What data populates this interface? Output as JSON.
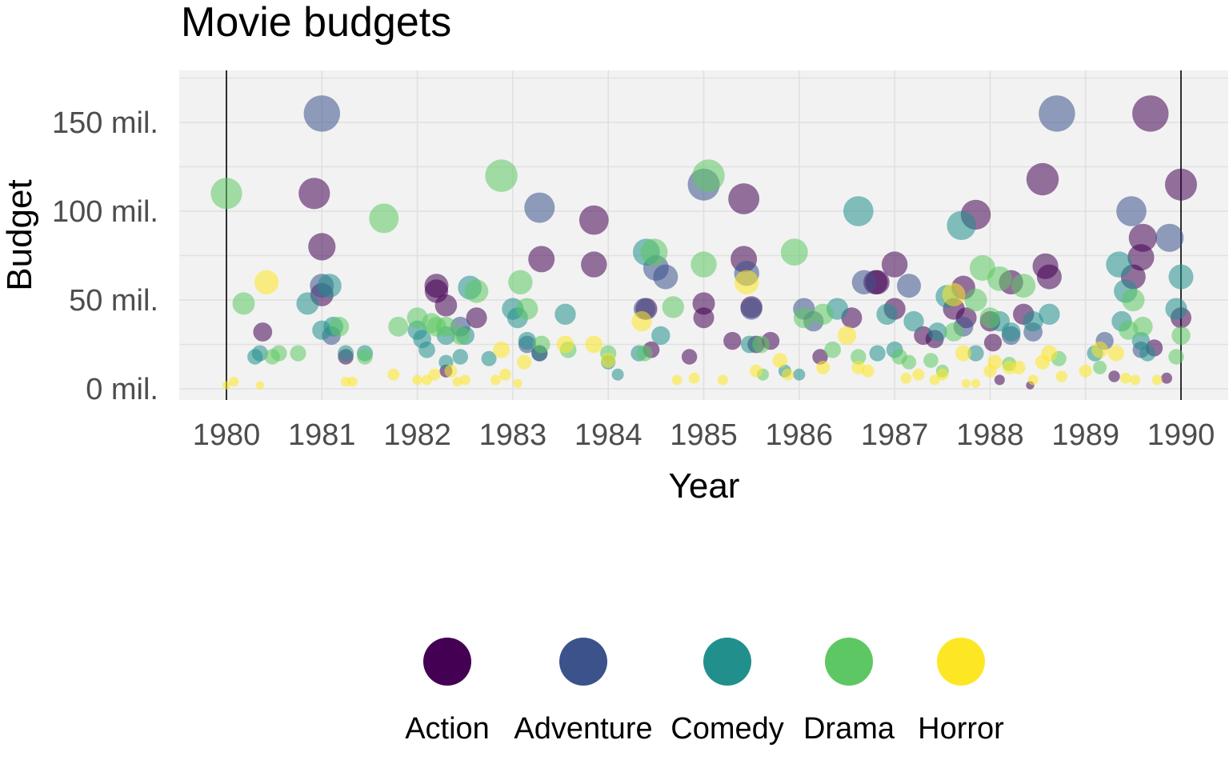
{
  "chart_data": {
    "type": "scatter",
    "title": "Movie budgets",
    "xlabel": "Year",
    "ylabel": "Budget",
    "xlim": [
      1979.5,
      1990.25
    ],
    "ylim": [
      -8,
      180
    ],
    "x_ticks": [
      1980,
      1981,
      1982,
      1983,
      1984,
      1985,
      1986,
      1987,
      1988,
      1989,
      1990
    ],
    "x_tick_labels": [
      "1980",
      "1981",
      "1982",
      "1983",
      "1984",
      "1985",
      "1986",
      "1987",
      "1988",
      "1989",
      "1990"
    ],
    "y_ticks": [
      0,
      50,
      100,
      150
    ],
    "y_tick_labels": [
      "0 mil.",
      "50 mil.",
      "100 mil.",
      "150 mil."
    ],
    "y_gridlines": [
      0,
      25,
      50,
      75,
      100,
      125,
      150,
      175
    ],
    "vertical_markers": [
      1980,
      1990
    ],
    "grid": true,
    "legend_position": "bottom",
    "size_encodes": "budget",
    "series": [
      {
        "name": "Action",
        "color": "#440154",
        "points": [
          [
            1980.38,
            32
          ],
          [
            1980.92,
            110
          ],
          [
            1981.0,
            80
          ],
          [
            1981.0,
            53
          ],
          [
            1981.25,
            18
          ],
          [
            1982.2,
            55
          ],
          [
            1982.2,
            58
          ],
          [
            1982.3,
            47
          ],
          [
            1982.3,
            10
          ],
          [
            1982.62,
            40
          ],
          [
            1983.28,
            20
          ],
          [
            1983.3,
            73
          ],
          [
            1983.85,
            95
          ],
          [
            1983.85,
            70
          ],
          [
            1984.4,
            45
          ],
          [
            1984.45,
            22
          ],
          [
            1984.85,
            18
          ],
          [
            1985.0,
            40
          ],
          [
            1985.0,
            48
          ],
          [
            1985.3,
            27
          ],
          [
            1985.42,
            73
          ],
          [
            1985.42,
            107
          ],
          [
            1985.5,
            46
          ],
          [
            1985.55,
            25
          ],
          [
            1985.7,
            27
          ],
          [
            1986.22,
            18
          ],
          [
            1986.55,
            40
          ],
          [
            1986.8,
            60
          ],
          [
            1986.82,
            60
          ],
          [
            1987.0,
            45
          ],
          [
            1987.0,
            70
          ],
          [
            1987.3,
            30
          ],
          [
            1987.42,
            28
          ],
          [
            1987.62,
            45
          ],
          [
            1987.72,
            57
          ],
          [
            1987.75,
            40
          ],
          [
            1987.85,
            98
          ],
          [
            1988.0,
            38
          ],
          [
            1988.03,
            26
          ],
          [
            1988.1,
            5
          ],
          [
            1988.22,
            60
          ],
          [
            1988.35,
            42
          ],
          [
            1988.42,
            2
          ],
          [
            1988.55,
            118
          ],
          [
            1988.58,
            69
          ],
          [
            1988.62,
            63
          ],
          [
            1989.3,
            7
          ],
          [
            1989.5,
            63
          ],
          [
            1989.58,
            74
          ],
          [
            1989.6,
            85
          ],
          [
            1989.68,
            155
          ],
          [
            1989.72,
            23
          ],
          [
            1990.0,
            40
          ],
          [
            1990.0,
            115
          ],
          [
            1989.85,
            6
          ]
        ]
      },
      {
        "name": "Adventure",
        "color": "#3b528b",
        "points": [
          [
            1981.0,
            155
          ],
          [
            1981.0,
            58
          ],
          [
            1981.1,
            30
          ],
          [
            1982.45,
            35
          ],
          [
            1983.15,
            25
          ],
          [
            1983.28,
            102
          ],
          [
            1984.38,
            45
          ],
          [
            1984.5,
            68
          ],
          [
            1984.6,
            63
          ],
          [
            1985.0,
            115
          ],
          [
            1985.45,
            65
          ],
          [
            1985.5,
            45
          ],
          [
            1986.05,
            45
          ],
          [
            1986.15,
            38
          ],
          [
            1986.68,
            60
          ],
          [
            1987.15,
            58
          ],
          [
            1987.72,
            35
          ],
          [
            1988.22,
            30
          ],
          [
            1988.45,
            32
          ],
          [
            1988.7,
            155
          ],
          [
            1989.2,
            27
          ],
          [
            1989.48,
            100
          ],
          [
            1989.58,
            22
          ],
          [
            1989.88,
            85
          ]
        ]
      },
      {
        "name": "Comedy",
        "color": "#21908c",
        "points": [
          [
            1980.3,
            18
          ],
          [
            1980.35,
            20
          ],
          [
            1980.85,
            48
          ],
          [
            1981.0,
            33
          ],
          [
            1981.08,
            58
          ],
          [
            1981.12,
            35
          ],
          [
            1981.25,
            20
          ],
          [
            1981.45,
            20
          ],
          [
            1982.0,
            33
          ],
          [
            1982.05,
            28
          ],
          [
            1982.1,
            22
          ],
          [
            1982.3,
            15
          ],
          [
            1982.3,
            30
          ],
          [
            1982.45,
            18
          ],
          [
            1982.5,
            30
          ],
          [
            1982.55,
            57
          ],
          [
            1982.75,
            17
          ],
          [
            1983.0,
            45
          ],
          [
            1983.05,
            40
          ],
          [
            1983.15,
            27
          ],
          [
            1983.28,
            20
          ],
          [
            1983.55,
            42
          ],
          [
            1984.0,
            15
          ],
          [
            1984.1,
            8
          ],
          [
            1984.32,
            20
          ],
          [
            1984.4,
            77
          ],
          [
            1984.55,
            30
          ],
          [
            1985.48,
            25
          ],
          [
            1985.85,
            10
          ],
          [
            1986.0,
            8
          ],
          [
            1986.4,
            45
          ],
          [
            1986.62,
            100
          ],
          [
            1986.82,
            20
          ],
          [
            1986.92,
            42
          ],
          [
            1987.0,
            22
          ],
          [
            1987.2,
            38
          ],
          [
            1987.45,
            32
          ],
          [
            1987.55,
            52
          ],
          [
            1987.7,
            92
          ],
          [
            1987.85,
            20
          ],
          [
            1988.1,
            38
          ],
          [
            1988.22,
            32
          ],
          [
            1988.45,
            38
          ],
          [
            1988.62,
            42
          ],
          [
            1989.1,
            20
          ],
          [
            1989.35,
            70
          ],
          [
            1989.38,
            38
          ],
          [
            1989.42,
            55
          ],
          [
            1989.58,
            27
          ],
          [
            1989.65,
            20
          ],
          [
            1990.0,
            63
          ],
          [
            1989.95,
            45
          ]
        ]
      },
      {
        "name": "Drama",
        "color": "#5dc863",
        "points": [
          [
            1980.0,
            110
          ],
          [
            1980.18,
            48
          ],
          [
            1980.48,
            18
          ],
          [
            1980.55,
            20
          ],
          [
            1980.75,
            20
          ],
          [
            1981.18,
            35
          ],
          [
            1981.45,
            18
          ],
          [
            1981.65,
            96
          ],
          [
            1981.8,
            35
          ],
          [
            1982.0,
            40
          ],
          [
            1982.15,
            37
          ],
          [
            1982.2,
            35
          ],
          [
            1982.3,
            35
          ],
          [
            1982.45,
            30
          ],
          [
            1982.62,
            55
          ],
          [
            1982.88,
            120
          ],
          [
            1983.08,
            60
          ],
          [
            1983.15,
            45
          ],
          [
            1983.3,
            25
          ],
          [
            1983.58,
            22
          ],
          [
            1984.0,
            20
          ],
          [
            1984.38,
            20
          ],
          [
            1984.48,
            77
          ],
          [
            1984.68,
            46
          ],
          [
            1985.0,
            70
          ],
          [
            1985.05,
            120
          ],
          [
            1985.6,
            25
          ],
          [
            1985.62,
            8
          ],
          [
            1985.95,
            77
          ],
          [
            1986.05,
            40
          ],
          [
            1986.25,
            42
          ],
          [
            1986.35,
            22
          ],
          [
            1986.62,
            18
          ],
          [
            1987.05,
            18
          ],
          [
            1987.15,
            15
          ],
          [
            1987.38,
            16
          ],
          [
            1987.5,
            10
          ],
          [
            1987.62,
            32
          ],
          [
            1987.85,
            50
          ],
          [
            1987.92,
            68
          ],
          [
            1988.0,
            40
          ],
          [
            1988.1,
            62
          ],
          [
            1988.2,
            14
          ],
          [
            1988.35,
            58
          ],
          [
            1988.72,
            17
          ],
          [
            1989.15,
            12
          ],
          [
            1989.45,
            33
          ],
          [
            1989.5,
            50
          ],
          [
            1989.6,
            35
          ],
          [
            1989.95,
            18
          ],
          [
            1990.0,
            30
          ]
        ]
      },
      {
        "name": "Horror",
        "color": "#fde725",
        "points": [
          [
            1980.0,
            2
          ],
          [
            1980.08,
            4
          ],
          [
            1980.35,
            2
          ],
          [
            1980.42,
            60
          ],
          [
            1981.25,
            4
          ],
          [
            1981.32,
            4
          ],
          [
            1981.75,
            8
          ],
          [
            1982.0,
            5
          ],
          [
            1982.1,
            5
          ],
          [
            1982.18,
            8
          ],
          [
            1982.35,
            10
          ],
          [
            1982.42,
            4
          ],
          [
            1982.5,
            5
          ],
          [
            1982.82,
            5
          ],
          [
            1982.88,
            22
          ],
          [
            1982.92,
            8
          ],
          [
            1983.05,
            3
          ],
          [
            1983.12,
            15
          ],
          [
            1983.55,
            25
          ],
          [
            1983.85,
            25
          ],
          [
            1984.0,
            16
          ],
          [
            1984.35,
            38
          ],
          [
            1984.72,
            5
          ],
          [
            1984.9,
            6
          ],
          [
            1985.2,
            5
          ],
          [
            1985.45,
            60
          ],
          [
            1985.55,
            10
          ],
          [
            1985.8,
            16
          ],
          [
            1985.88,
            8
          ],
          [
            1986.25,
            12
          ],
          [
            1986.5,
            30
          ],
          [
            1986.62,
            12
          ],
          [
            1986.72,
            10
          ],
          [
            1987.12,
            6
          ],
          [
            1987.25,
            8
          ],
          [
            1987.42,
            5
          ],
          [
            1987.5,
            8
          ],
          [
            1987.62,
            53
          ],
          [
            1987.72,
            20
          ],
          [
            1987.75,
            3
          ],
          [
            1987.85,
            3
          ],
          [
            1988.0,
            10
          ],
          [
            1988.05,
            15
          ],
          [
            1988.2,
            12
          ],
          [
            1988.3,
            12
          ],
          [
            1988.45,
            5
          ],
          [
            1988.55,
            15
          ],
          [
            1988.62,
            20
          ],
          [
            1988.75,
            7
          ],
          [
            1989.0,
            10
          ],
          [
            1989.15,
            22
          ],
          [
            1989.32,
            20
          ],
          [
            1989.42,
            6
          ],
          [
            1989.52,
            5
          ],
          [
            1989.75,
            5
          ]
        ]
      }
    ]
  }
}
